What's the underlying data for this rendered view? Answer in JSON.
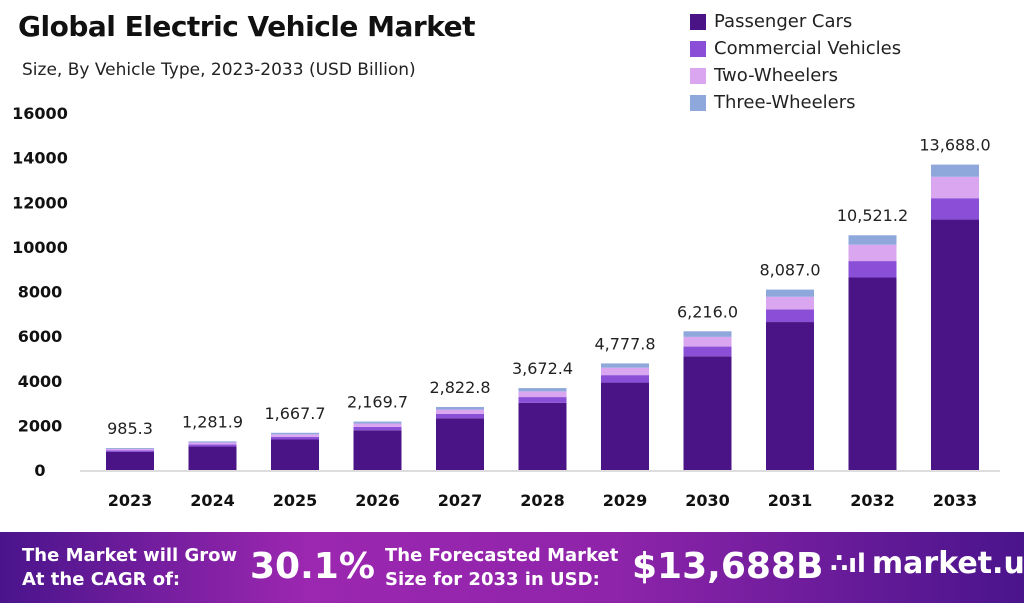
{
  "chart_data": {
    "type": "bar",
    "stacked": true,
    "title": "Global Electric Vehicle Market",
    "subtitle": "Size, By Vehicle Type, 2023-2033 (USD Billion)",
    "categories": [
      "2023",
      "2024",
      "2025",
      "2026",
      "2027",
      "2028",
      "2029",
      "2030",
      "2031",
      "2032",
      "2033"
    ],
    "totals": [
      "985.3",
      "1,281.9",
      "1,667.7",
      "2,169.7",
      "2,822.8",
      "3,672.4",
      "4,777.8",
      "6,216.0",
      "8,087.0",
      "10,521.2",
      "13,688.0"
    ],
    "series": [
      {
        "name": "Passenger Cars",
        "color": "#4a1486",
        "values": [
          808,
          1051,
          1367,
          1779,
          2315,
          3011,
          3918,
          5097,
          6631,
          8627,
          11224
        ]
      },
      {
        "name": "Commercial Vehicles",
        "color": "#8a4fd6",
        "values": [
          69,
          90,
          117,
          152,
          198,
          257,
          334,
          435,
          566,
          736,
          958
        ]
      },
      {
        "name": "Two-Wheelers",
        "color": "#d9a6ef",
        "values": [
          69,
          90,
          117,
          152,
          198,
          257,
          334,
          435,
          566,
          736,
          958
        ]
      },
      {
        "name": "Three-Wheelers",
        "color": "#8fa8dc",
        "values": [
          39,
          51,
          67,
          87,
          113,
          147,
          191,
          249,
          323,
          421,
          548
        ]
      }
    ],
    "yticks": [
      "0",
      "2000",
      "4000",
      "6000",
      "8000",
      "10000",
      "12000",
      "14000",
      "16000"
    ],
    "ylim": [
      0,
      16000
    ],
    "grid": false,
    "legend": "top-right"
  },
  "footer": {
    "cagr_text_1": "The Market will Grow",
    "cagr_text_2": "At the CAGR of:",
    "cagr": "30.1%",
    "forecast_text_1": "The Forecasted Market",
    "forecast_text_2": "Size for 2033 in USD:",
    "forecast": "$13,688B",
    "brand": "market.us"
  }
}
